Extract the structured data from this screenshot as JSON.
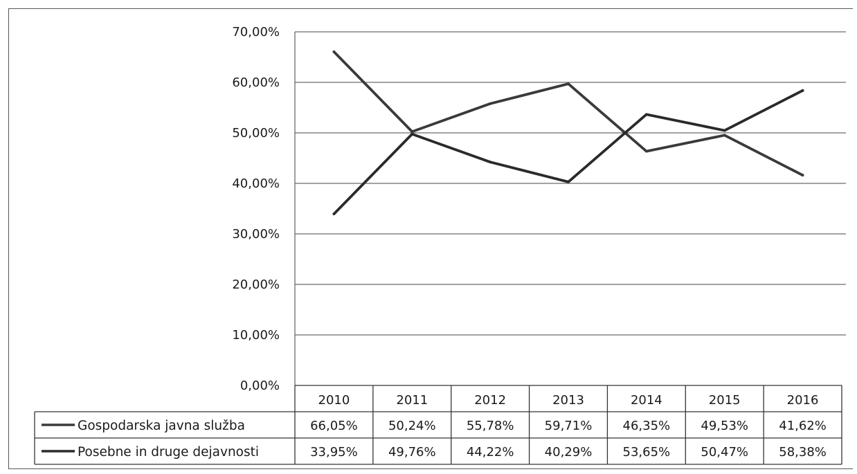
{
  "chart_data": {
    "type": "line",
    "title": "",
    "xlabel": "",
    "ylabel": "",
    "categories": [
      "2010",
      "2011",
      "2012",
      "2013",
      "2014",
      "2015",
      "2016"
    ],
    "ylim": [
      0,
      70
    ],
    "yticks": [
      "0,00%",
      "10,00%",
      "20,00%",
      "30,00%",
      "40,00%",
      "50,00%",
      "60,00%",
      "70,00%"
    ],
    "grid": true,
    "legend": "data-table",
    "series": [
      {
        "name": "Gospodarska javna služba",
        "values": [
          66.05,
          50.24,
          55.78,
          59.71,
          46.35,
          49.53,
          41.62
        ],
        "labels": [
          "66,05%",
          "50,24%",
          "55,78%",
          "59,71%",
          "46,35%",
          "49,53%",
          "41,62%"
        ],
        "color": "#3a3a3a"
      },
      {
        "name": "Posebne in druge dejavnosti",
        "values": [
          33.95,
          49.76,
          44.22,
          40.29,
          53.65,
          50.47,
          58.38
        ],
        "labels": [
          "33,95%",
          "49,76%",
          "44,22%",
          "40,29%",
          "53,65%",
          "50,47%",
          "58,38%"
        ],
        "color": "#2a2a2a"
      }
    ]
  }
}
